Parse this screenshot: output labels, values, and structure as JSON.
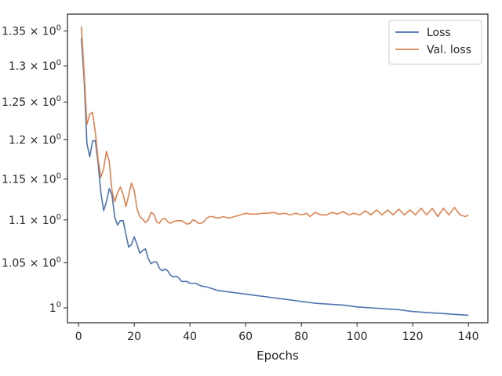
{
  "chart_data": {
    "type": "line",
    "xlabel": "Epochs",
    "ylabel": "",
    "title": "",
    "xlim": [
      -4,
      147
    ],
    "ylim": [
      0.984,
      1.375
    ],
    "yscale": "log",
    "grid": false,
    "legend_position": "top-right",
    "x_ticks": [
      0,
      20,
      40,
      60,
      80,
      100,
      120,
      140
    ],
    "y_ticks": [
      {
        "value": 1.0,
        "base": "1",
        "exp": "0"
      },
      {
        "value": 1.05,
        "base": "1.05 × 10",
        "exp": "0"
      },
      {
        "value": 1.1,
        "base": "1.1 × 10",
        "exp": "0"
      },
      {
        "value": 1.15,
        "base": "1.15 × 10",
        "exp": "0"
      },
      {
        "value": 1.2,
        "base": "1.2 × 10",
        "exp": "0"
      },
      {
        "value": 1.25,
        "base": "1.25 × 10",
        "exp": "0"
      },
      {
        "value": 1.3,
        "base": "1.3 × 10",
        "exp": "0"
      },
      {
        "value": 1.35,
        "base": "1.35 × 10",
        "exp": "0"
      }
    ],
    "series": [
      {
        "name": "Loss",
        "color": "#4c72b0",
        "x": [
          1,
          2,
          3,
          4,
          5,
          6,
          7,
          8,
          9,
          10,
          11,
          12,
          13,
          14,
          15,
          16,
          17,
          18,
          19,
          20,
          21,
          22,
          23,
          24,
          25,
          26,
          27,
          28,
          29,
          30,
          31,
          32,
          33,
          34,
          35,
          36,
          37,
          38,
          39,
          40,
          42,
          44,
          46,
          48,
          50,
          55,
          60,
          65,
          70,
          75,
          80,
          85,
          90,
          95,
          100,
          105,
          110,
          115,
          120,
          125,
          130,
          135,
          140
        ],
        "values": [
          1.34,
          1.28,
          1.195,
          1.178,
          1.198,
          1.199,
          1.17,
          1.133,
          1.111,
          1.122,
          1.138,
          1.13,
          1.103,
          1.094,
          1.099,
          1.099,
          1.083,
          1.068,
          1.071,
          1.08,
          1.071,
          1.061,
          1.064,
          1.066,
          1.055,
          1.049,
          1.051,
          1.051,
          1.044,
          1.041,
          1.043,
          1.041,
          1.036,
          1.034,
          1.035,
          1.033,
          1.029,
          1.029,
          1.029,
          1.027,
          1.027,
          1.024,
          1.023,
          1.021,
          1.019,
          1.017,
          1.015,
          1.013,
          1.011,
          1.009,
          1.007,
          1.005,
          1.004,
          1.003,
          1.001,
          1.0,
          0.999,
          0.998,
          0.996,
          0.995,
          0.994,
          0.993,
          0.992
        ]
      },
      {
        "name": "Val. loss",
        "color": "#dd8452",
        "x": [
          1,
          2,
          3,
          4,
          5,
          6,
          7,
          8,
          9,
          10,
          11,
          12,
          13,
          14,
          15,
          16,
          17,
          18,
          19,
          20,
          21,
          22,
          23,
          24,
          25,
          26,
          27,
          28,
          29,
          30,
          31,
          32,
          33,
          34,
          35,
          36,
          37,
          38,
          39,
          40,
          41,
          42,
          43,
          44,
          45,
          46,
          47,
          48,
          49,
          50,
          52,
          54,
          56,
          58,
          60,
          62,
          64,
          66,
          68,
          70,
          72,
          74,
          76,
          78,
          80,
          82,
          83,
          85,
          87,
          89,
          91,
          93,
          95,
          97,
          99,
          101,
          103,
          105,
          107,
          109,
          111,
          113,
          115,
          117,
          119,
          121,
          123,
          125,
          127,
          129,
          131,
          133,
          135,
          137,
          139,
          140
        ],
        "values": [
          1.357,
          1.29,
          1.22,
          1.234,
          1.236,
          1.21,
          1.175,
          1.152,
          1.163,
          1.185,
          1.172,
          1.135,
          1.122,
          1.133,
          1.14,
          1.131,
          1.116,
          1.13,
          1.145,
          1.135,
          1.113,
          1.104,
          1.101,
          1.097,
          1.1,
          1.109,
          1.107,
          1.098,
          1.096,
          1.101,
          1.102,
          1.098,
          1.096,
          1.098,
          1.099,
          1.099,
          1.099,
          1.097,
          1.095,
          1.096,
          1.1,
          1.099,
          1.096,
          1.096,
          1.098,
          1.102,
          1.104,
          1.104,
          1.103,
          1.102,
          1.104,
          1.102,
          1.104,
          1.106,
          1.108,
          1.107,
          1.107,
          1.108,
          1.108,
          1.109,
          1.107,
          1.108,
          1.106,
          1.108,
          1.106,
          1.108,
          1.104,
          1.109,
          1.106,
          1.106,
          1.109,
          1.107,
          1.11,
          1.106,
          1.108,
          1.106,
          1.111,
          1.106,
          1.112,
          1.106,
          1.112,
          1.106,
          1.113,
          1.106,
          1.112,
          1.106,
          1.114,
          1.106,
          1.114,
          1.104,
          1.114,
          1.106,
          1.115,
          1.106,
          1.104,
          1.106
        ]
      }
    ]
  }
}
